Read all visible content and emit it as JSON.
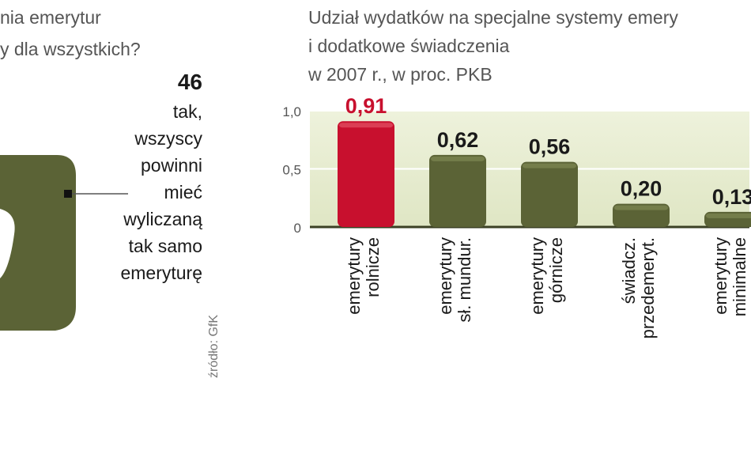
{
  "left_panel": {
    "question_line1": "nia emerytur",
    "question_line2": "y dla wszystkich?",
    "answer_value": "46",
    "answer_lines": [
      "tak,",
      "wszyscy",
      "powinni",
      "mieć",
      "wyliczaną",
      "tak samo",
      "emeryturę"
    ],
    "source": "źródło: GfK",
    "segment_color": "#5b6336"
  },
  "chart_data": {
    "type": "bar",
    "title_lines": [
      "Udział wydatków na specjalne systemy emery",
      "i dodatkowe świadczenia",
      "w 2007 r., w proc. PKB"
    ],
    "categories": [
      [
        "emerytury",
        "rolnicze"
      ],
      [
        "emerytury",
        "sł. mundur."
      ],
      [
        "emerytury",
        "górnicze"
      ],
      [
        "świadcz.",
        "przedemeryt."
      ],
      [
        "emerytury",
        "minimalne"
      ]
    ],
    "values": [
      0.91,
      0.62,
      0.56,
      0.2,
      0.13
    ],
    "value_labels": [
      "0,91",
      "0,62",
      "0,56",
      "0,20",
      "0,13"
    ],
    "y_ticks": [
      "0",
      "0,5",
      "1,0"
    ],
    "y_tick_values": [
      0,
      0.5,
      1.0
    ],
    "ylim": [
      0,
      1.0
    ],
    "highlight_index": 0,
    "colors": {
      "highlight": "#c8102e",
      "bar": "#5b6336",
      "bar_light": "#7a8350",
      "band": "#e6ebcf",
      "highlight_label": "#c8102e",
      "label": "#1a1a1a"
    }
  }
}
